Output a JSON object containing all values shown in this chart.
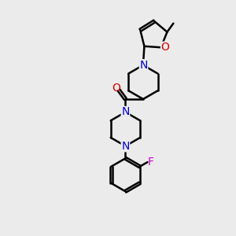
{
  "bg_color": "#ebebeb",
  "bond_color": "#000000",
  "N_color": "#0000cc",
  "O_color": "#cc0000",
  "F_color": "#cc00cc",
  "line_width": 1.8,
  "font_size_atom": 10,
  "xlim": [
    0,
    10
  ],
  "ylim": [
    0,
    10
  ]
}
